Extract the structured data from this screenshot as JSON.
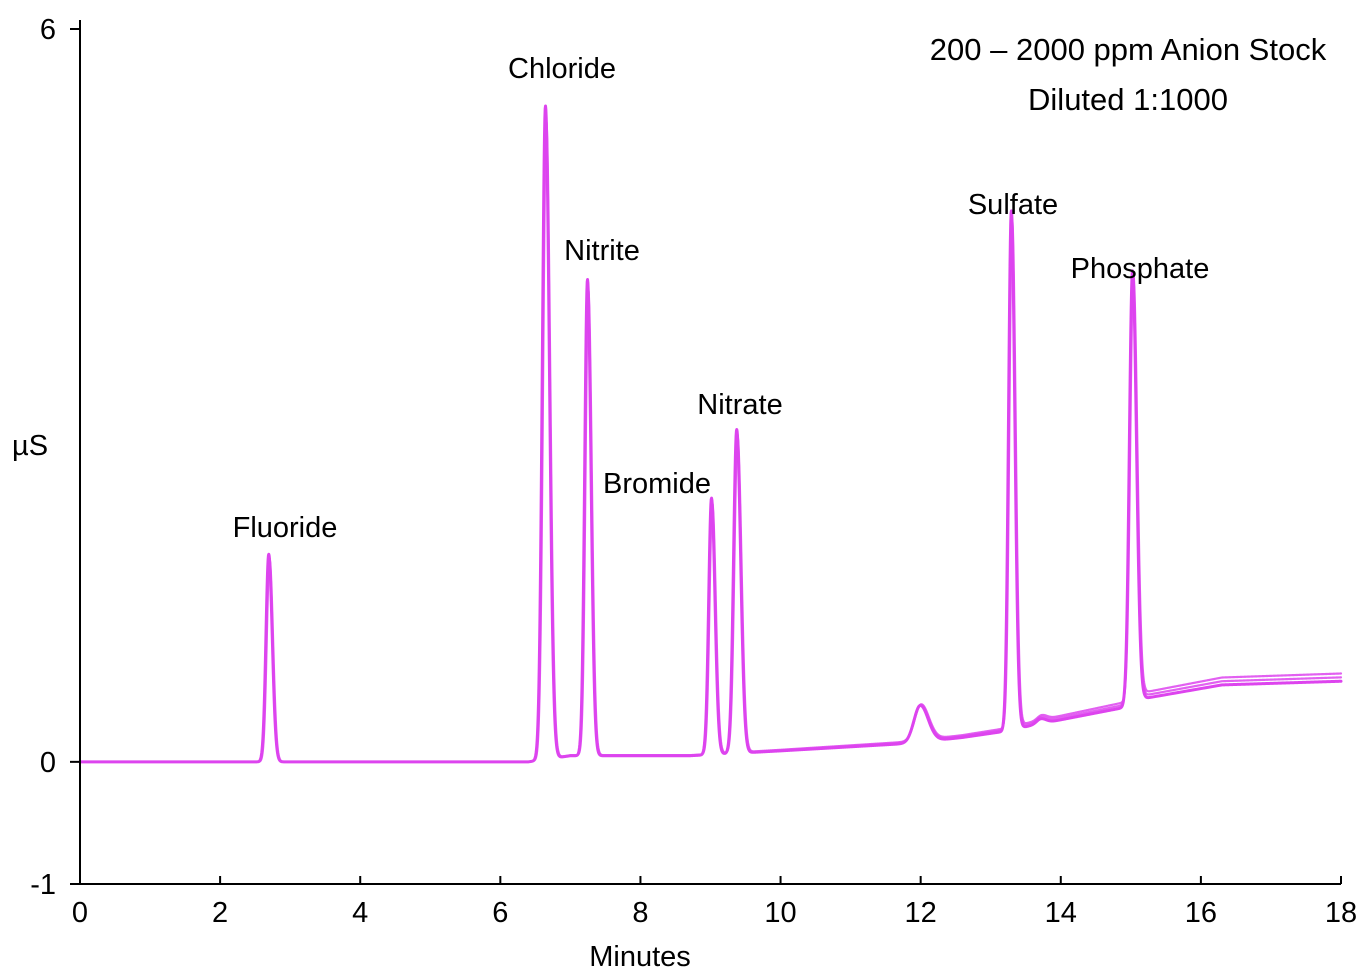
{
  "chart_data": {
    "type": "line",
    "title": [
      "200 – 2000 ppm Anion Stock",
      "Diluted 1:1000"
    ],
    "xlabel": "Minutes",
    "ylabel": "µS",
    "xlim": [
      0,
      18
    ],
    "ylim": [
      -1,
      6
    ],
    "x_ticks": [
      {
        "value": 0,
        "label": "0"
      },
      {
        "value": 2,
        "label": "2"
      },
      {
        "value": 4,
        "label": "4"
      },
      {
        "value": 6,
        "label": "6"
      },
      {
        "value": 8,
        "label": "8"
      },
      {
        "value": 10,
        "label": "10"
      },
      {
        "value": 12,
        "label": "12"
      },
      {
        "value": 14,
        "label": "14"
      },
      {
        "value": 16,
        "label": "16"
      },
      {
        "value": 18,
        "label": "18"
      }
    ],
    "y_ticks": [
      {
        "value": 6,
        "label": "6"
      },
      {
        "value": 0,
        "label": "0"
      },
      {
        "value": -1,
        "label": "-1"
      }
    ],
    "grid": false,
    "line_color": "#dd44ee",
    "peaks": [
      {
        "name": "Fluoride",
        "time": 2.7,
        "height": 1.7,
        "width": 0.04
      },
      {
        "name": "Chloride",
        "time": 6.65,
        "height": 5.35,
        "width": 0.045
      },
      {
        "name": "Nitrite",
        "time": 7.25,
        "height": 3.9,
        "width": 0.04
      },
      {
        "name": "Bromide",
        "time": 9.02,
        "height": 2.1,
        "width": 0.04
      },
      {
        "name": "Nitrate",
        "time": 9.38,
        "height": 2.65,
        "width": 0.045
      },
      {
        "name": "",
        "time": 12.0,
        "height": 0.3,
        "width": 0.09
      },
      {
        "name": "Sulfate",
        "time": 13.3,
        "height": 4.25,
        "width": 0.04
      },
      {
        "name": "",
        "time": 13.72,
        "height": 0.04,
        "width": 0.06
      },
      {
        "name": "Phosphate",
        "time": 15.03,
        "height": 3.55,
        "width": 0.045
      }
    ],
    "baseline": [
      {
        "x": 0,
        "y": 0.0
      },
      {
        "x": 6.4,
        "y": 0.0
      },
      {
        "x": 7.0,
        "y": 0.05
      },
      {
        "x": 8.7,
        "y": 0.05
      },
      {
        "x": 10.0,
        "y": 0.09
      },
      {
        "x": 11.8,
        "y": 0.15
      },
      {
        "x": 12.6,
        "y": 0.2
      },
      {
        "x": 13.2,
        "y": 0.25
      },
      {
        "x": 13.6,
        "y": 0.3
      },
      {
        "x": 14.95,
        "y": 0.45
      },
      {
        "x": 15.2,
        "y": 0.52
      },
      {
        "x": 16.3,
        "y": 0.63
      },
      {
        "x": 18.0,
        "y": 0.66
      }
    ],
    "trace_count": 3
  }
}
